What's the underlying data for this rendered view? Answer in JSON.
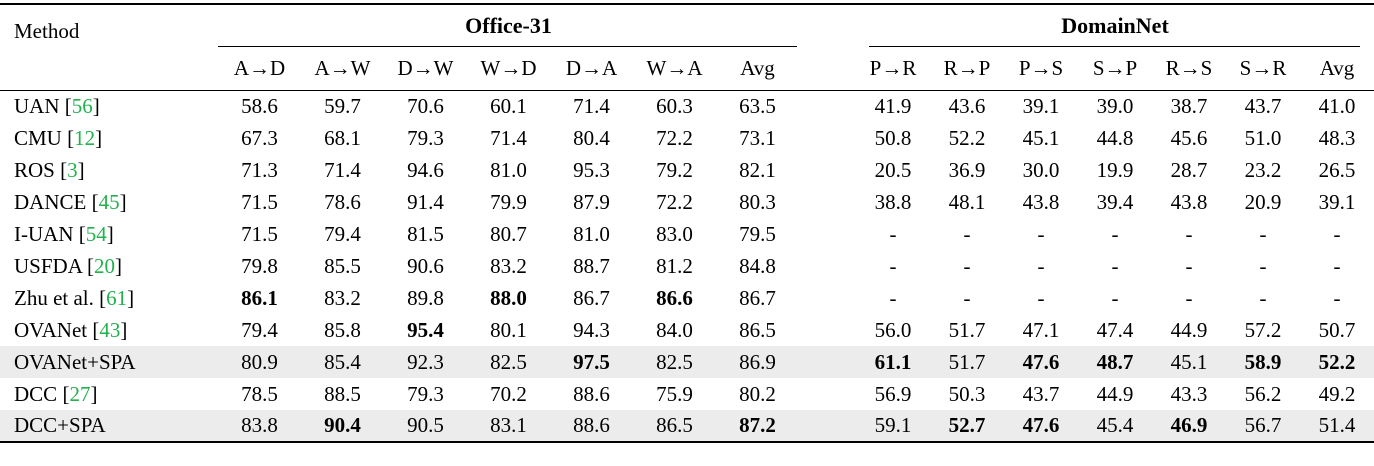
{
  "table": {
    "method_header": "Method",
    "colors": {
      "citation_green": "#22b14c",
      "highlight_row": "#ececec",
      "rule_black": "#000000"
    },
    "groups": [
      {
        "label": "Office-31",
        "columns": [
          "A→D",
          "A→W",
          "D→W",
          "W→D",
          "D→A",
          "W→A",
          "Avg"
        ]
      },
      {
        "label": "DomainNet",
        "columns": [
          "P→R",
          "R→P",
          "P→S",
          "S→P",
          "R→S",
          "S→R",
          "Avg"
        ]
      }
    ],
    "rows": [
      {
        "method": "UAN",
        "cite": "56",
        "highlight": false,
        "office": [
          "58.6",
          "59.7",
          "70.6",
          "60.1",
          "71.4",
          "60.3",
          "63.5"
        ],
        "bold_office": [],
        "domainnet": [
          "41.9",
          "43.6",
          "39.1",
          "39.0",
          "38.7",
          "43.7",
          "41.0"
        ],
        "bold_domainnet": []
      },
      {
        "method": "CMU",
        "cite": "12",
        "highlight": false,
        "office": [
          "67.3",
          "68.1",
          "79.3",
          "71.4",
          "80.4",
          "72.2",
          "73.1"
        ],
        "bold_office": [],
        "domainnet": [
          "50.8",
          "52.2",
          "45.1",
          "44.8",
          "45.6",
          "51.0",
          "48.3"
        ],
        "bold_domainnet": []
      },
      {
        "method": "ROS",
        "cite": "3",
        "highlight": false,
        "office": [
          "71.3",
          "71.4",
          "94.6",
          "81.0",
          "95.3",
          "79.2",
          "82.1"
        ],
        "bold_office": [],
        "domainnet": [
          "20.5",
          "36.9",
          "30.0",
          "19.9",
          "28.7",
          "23.2",
          "26.5"
        ],
        "bold_domainnet": []
      },
      {
        "method": "DANCE",
        "cite": "45",
        "highlight": false,
        "office": [
          "71.5",
          "78.6",
          "91.4",
          "79.9",
          "87.9",
          "72.2",
          "80.3"
        ],
        "bold_office": [],
        "domainnet": [
          "38.8",
          "48.1",
          "43.8",
          "39.4",
          "43.8",
          "20.9",
          "39.1"
        ],
        "bold_domainnet": []
      },
      {
        "method": "I-UAN",
        "cite": "54",
        "highlight": false,
        "office": [
          "71.5",
          "79.4",
          "81.5",
          "80.7",
          "81.0",
          "83.0",
          "79.5"
        ],
        "bold_office": [],
        "domainnet": [
          "-",
          "-",
          "-",
          "-",
          "-",
          "-",
          "-"
        ],
        "bold_domainnet": []
      },
      {
        "method": "USFDA",
        "cite": "20",
        "highlight": false,
        "office": [
          "79.8",
          "85.5",
          "90.6",
          "83.2",
          "88.7",
          "81.2",
          "84.8"
        ],
        "bold_office": [],
        "domainnet": [
          "-",
          "-",
          "-",
          "-",
          "-",
          "-",
          "-"
        ],
        "bold_domainnet": []
      },
      {
        "method": "Zhu et al.",
        "cite": "61",
        "highlight": false,
        "office": [
          "86.1",
          "83.2",
          "89.8",
          "88.0",
          "86.7",
          "86.6",
          "86.7"
        ],
        "bold_office": [
          0,
          3,
          5
        ],
        "domainnet": [
          "-",
          "-",
          "-",
          "-",
          "-",
          "-",
          "-"
        ],
        "bold_domainnet": []
      },
      {
        "method": "OVANet",
        "cite": "43",
        "highlight": false,
        "office": [
          "79.4",
          "85.8",
          "95.4",
          "80.1",
          "94.3",
          "84.0",
          "86.5"
        ],
        "bold_office": [
          2
        ],
        "domainnet": [
          "56.0",
          "51.7",
          "47.1",
          "47.4",
          "44.9",
          "57.2",
          "50.7"
        ],
        "bold_domainnet": []
      },
      {
        "method": "OVANet+SPA",
        "cite": null,
        "highlight": true,
        "office": [
          "80.9",
          "85.4",
          "92.3",
          "82.5",
          "97.5",
          "82.5",
          "86.9"
        ],
        "bold_office": [
          4
        ],
        "domainnet": [
          "61.1",
          "51.7",
          "47.6",
          "48.7",
          "45.1",
          "58.9",
          "52.2"
        ],
        "bold_domainnet": [
          0,
          2,
          3,
          5,
          6
        ]
      },
      {
        "method": "DCC",
        "cite": "27",
        "highlight": false,
        "office": [
          "78.5",
          "88.5",
          "79.3",
          "70.2",
          "88.6",
          "75.9",
          "80.2"
        ],
        "bold_office": [],
        "domainnet": [
          "56.9",
          "50.3",
          "43.7",
          "44.9",
          "43.3",
          "56.2",
          "49.2"
        ],
        "bold_domainnet": []
      },
      {
        "method": "DCC+SPA",
        "cite": null,
        "highlight": true,
        "office": [
          "83.8",
          "90.4",
          "90.5",
          "83.1",
          "88.6",
          "86.5",
          "87.2"
        ],
        "bold_office": [
          1,
          6
        ],
        "domainnet": [
          "59.1",
          "52.7",
          "47.6",
          "45.4",
          "46.9",
          "56.7",
          "51.4"
        ],
        "bold_domainnet": [
          1,
          2,
          4
        ]
      }
    ]
  }
}
